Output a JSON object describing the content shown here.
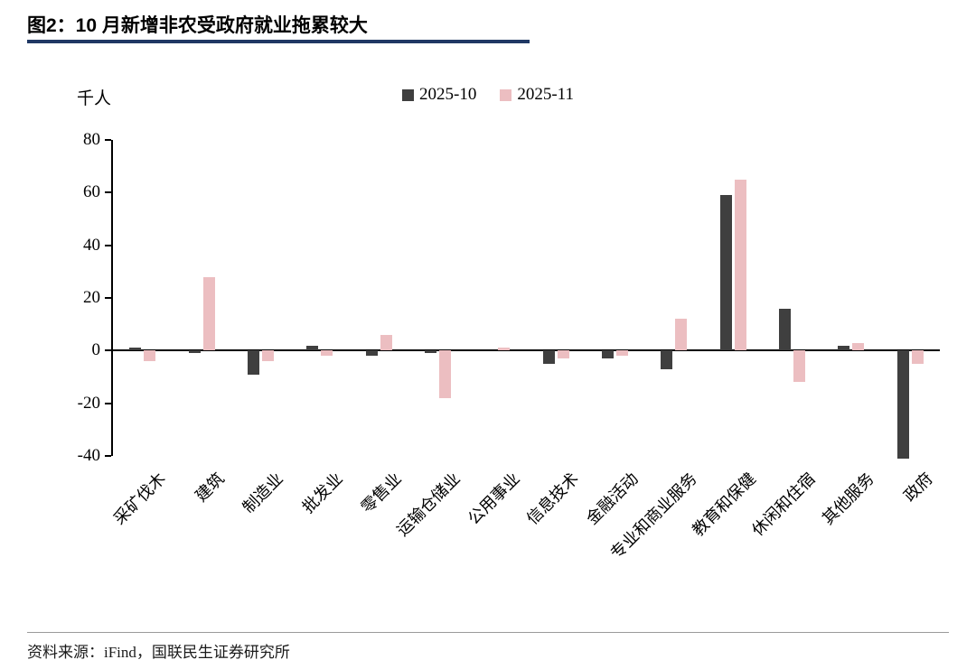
{
  "title": "图2：10 月新增非农受政府就业拖累较大",
  "source_note": "资料来源：iFind，国联民生证券研究所",
  "chart_data": {
    "type": "bar",
    "title": "图2：10 月新增非农受政府就业拖累较大",
    "xlabel": "",
    "ylabel": "千人",
    "ylim": [
      -40,
      80
    ],
    "yticks": [
      -40,
      -20,
      0,
      20,
      40,
      60,
      80
    ],
    "grid": false,
    "legend_position": "top-center",
    "categories": [
      "采矿伐木",
      "建筑",
      "制造业",
      "批发业",
      "零售业",
      "运输仓储业",
      "公用事业",
      "信息技术",
      "金融活动",
      "专业和商业服务",
      "教育和保健",
      "休闲和住宿",
      "其他服务",
      "政府"
    ],
    "series": [
      {
        "name": "2025-10",
        "color": "#3F3F3F",
        "values": [
          1,
          -1,
          -9,
          2,
          -2,
          -1,
          0,
          -5,
          -3,
          -7,
          59,
          16,
          2,
          -41
        ]
      },
      {
        "name": "2025-11",
        "color": "#ECBEC1",
        "values": [
          -4,
          28,
          -4,
          -2,
          6,
          -18,
          1,
          -3,
          -2,
          12,
          65,
          -12,
          3,
          -5
        ]
      }
    ]
  }
}
